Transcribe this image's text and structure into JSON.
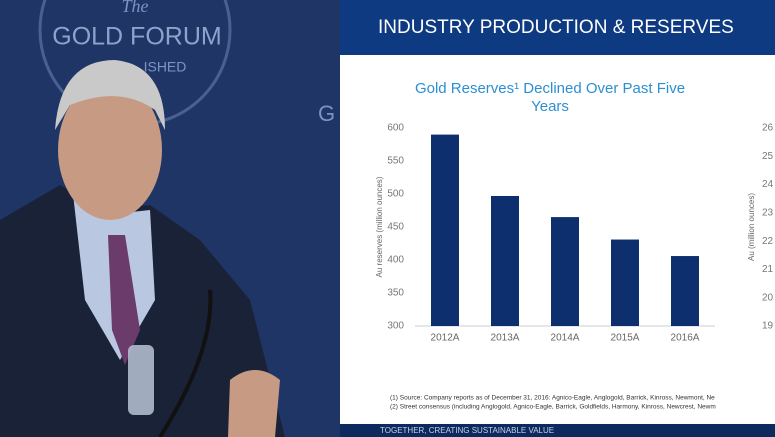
{
  "stage": {
    "logo_the": "The",
    "logo_name": "GOLD FORUM",
    "logo_tag": "ISHED",
    "logo_fragment": "G"
  },
  "slide": {
    "header": "INDUSTRY PRODUCTION & RESERVES",
    "footer": "TOGETHER, CREATING SUSTAINABLE VALUE",
    "footnotes": [
      "(1) Source: Company reports as of December 31, 2016:  Agnico-Eagle, Anglogold, Barrick, Kinross, Newmont, Ne",
      "(2) Street consensus (including Anglogold, Agnico-Eagle, Barrick, Goldfields, Harmony, Kinross, Newcrest, Newm"
    ]
  },
  "chart_data": {
    "type": "bar",
    "title": "Gold Reserves¹ Declined Over Past Five Years",
    "ylabel": "Au reserves (million ounces)",
    "y2label": "Au (million ounces)",
    "categories": [
      "2012A",
      "2013A",
      "2014A",
      "2015A",
      "2016A"
    ],
    "values": [
      590,
      497,
      465,
      431,
      406
    ],
    "color": "#0d2f6e",
    "ylim": [
      300,
      600
    ],
    "yticks": [
      300,
      350,
      400,
      450,
      500,
      550,
      600
    ],
    "y2lim": [
      19,
      26
    ],
    "y2ticks": [
      19,
      20,
      21,
      22,
      23,
      24,
      25,
      26
    ]
  }
}
